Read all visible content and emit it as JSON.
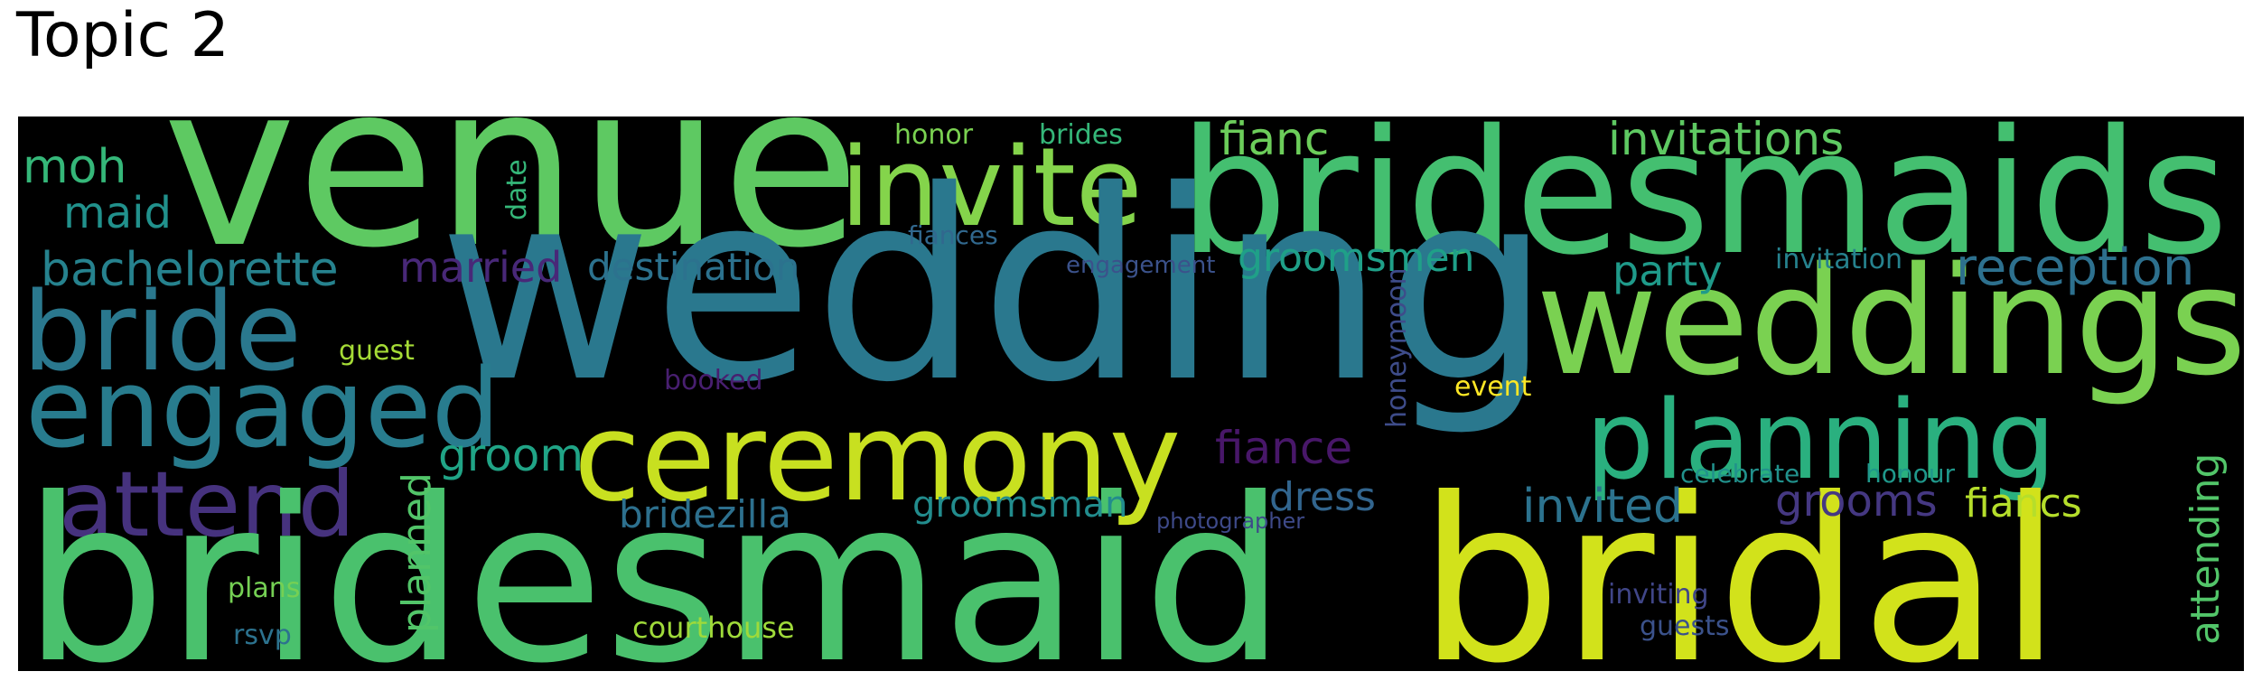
{
  "title": "Topic 2",
  "background_color": "#000000",
  "words": {
    "wedding": {
      "text": "wedding",
      "color": "#2a788e"
    },
    "bridesmaid": {
      "text": "bridesmaid",
      "color": "#4ac16d"
    },
    "bridal": {
      "text": "bridal",
      "color": "#d2e21b"
    },
    "venue": {
      "text": "venue",
      "color": "#5ec962"
    },
    "bridesmaids": {
      "text": "bridesmaids",
      "color": "#44bf70"
    },
    "weddings": {
      "text": "weddings",
      "color": "#7ad151"
    },
    "ceremony": {
      "text": "ceremony",
      "color": "#c8e020"
    },
    "invite": {
      "text": "invite",
      "color": "#84d44b"
    },
    "bride": {
      "text": "bride",
      "color": "#2a788e"
    },
    "engaged": {
      "text": "engaged",
      "color": "#287c8e"
    },
    "planning": {
      "text": "planning",
      "color": "#2ab07f"
    },
    "attend": {
      "text": "attend",
      "color": "#46327e"
    },
    "moh": {
      "text": "moh",
      "color": "#35b779"
    },
    "maid": {
      "text": "maid",
      "color": "#21918c"
    },
    "bachelorette": {
      "text": "bachelorette",
      "color": "#26828e"
    },
    "married": {
      "text": "married",
      "color": "#482878"
    },
    "destination": {
      "text": "destination",
      "color": "#2c728e"
    },
    "fianc": {
      "text": "fianc",
      "color": "#6ccd5a"
    },
    "invitations": {
      "text": "invitations",
      "color": "#5ec962"
    },
    "honor": {
      "text": "honor",
      "color": "#7ad151"
    },
    "brides": {
      "text": "brides",
      "color": "#35b779"
    },
    "fiances": {
      "text": "fiances",
      "color": "#31688e"
    },
    "engagement": {
      "text": "engagement",
      "color": "#3b528b"
    },
    "groomsmen": {
      "text": "groomsmen",
      "color": "#1fa088"
    },
    "party": {
      "text": "party",
      "color": "#1f9a8a"
    },
    "invitation": {
      "text": "invitation",
      "color": "#26828e"
    },
    "reception": {
      "text": "reception",
      "color": "#2d708e"
    },
    "guest": {
      "text": "guest",
      "color": "#a5db36"
    },
    "booked": {
      "text": "booked",
      "color": "#481f70"
    },
    "event": {
      "text": "event",
      "color": "#fde725"
    },
    "groom": {
      "text": "groom",
      "color": "#20a486"
    },
    "fiance": {
      "text": "fiance",
      "color": "#481769"
    },
    "celebrate": {
      "text": "celebrate",
      "color": "#21918c"
    },
    "honour": {
      "text": "honour",
      "color": "#1f988b"
    },
    "dress": {
      "text": "dress",
      "color": "#32658e"
    },
    "invited": {
      "text": "invited",
      "color": "#2c728e"
    },
    "grooms": {
      "text": "grooms",
      "color": "#453882"
    },
    "fiancs": {
      "text": "fiancs",
      "color": "#b5de2b"
    },
    "bridezilla": {
      "text": "bridezilla",
      "color": "#2d708e"
    },
    "groomsman": {
      "text": "groomsman",
      "color": "#228c8d"
    },
    "photographer": {
      "text": "photographer",
      "color": "#3e4a89"
    },
    "plans": {
      "text": "plans",
      "color": "#75d054"
    },
    "inviting": {
      "text": "inviting",
      "color": "#404688"
    },
    "courthouse": {
      "text": "courthouse",
      "color": "#9fda3a"
    },
    "guests": {
      "text": "guests",
      "color": "#3b528b"
    },
    "rsvp": {
      "text": "rsvp",
      "color": "#2c728e"
    },
    "date": {
      "text": "date",
      "color": "#35b779"
    },
    "honeymoon": {
      "text": "honeymoon",
      "color": "#3e4c8a"
    },
    "planned": {
      "text": "planned",
      "color": "#52c569"
    },
    "attending": {
      "text": "attending",
      "color": "#52c569"
    }
  }
}
